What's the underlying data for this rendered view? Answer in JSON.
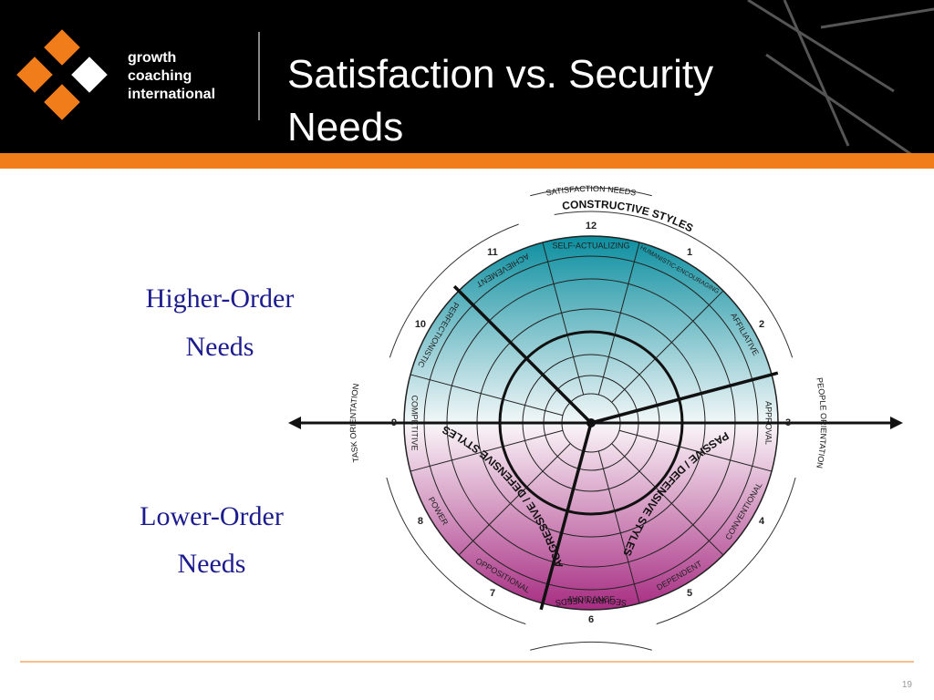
{
  "header": {
    "logo_lines": [
      "growth",
      "coaching",
      "international"
    ],
    "title_lines": [
      "Satisfaction vs. Security",
      "Needs"
    ]
  },
  "side_labels": {
    "higher": [
      "Higher-Order",
      "Needs"
    ],
    "lower": [
      "Lower-Order",
      "Needs"
    ]
  },
  "diagram": {
    "top": "SATISFACTION NEEDS",
    "bottom": "SECURITY NEEDS",
    "left": "TASK ORIENTATION",
    "right": "PEOPLE ORIENTATION",
    "styles": {
      "constructive": "CONSTRUCTIVE STYLES",
      "passive": "PASSIVE / DEFENSIVE STYLES",
      "aggressive": "AGGRESSIVE / DEFENSIVE STYLES"
    },
    "segments": [
      {
        "number": 12,
        "name": "SELF-ACTUALIZING"
      },
      {
        "number": 1,
        "name": "HUMANISTIC-ENCOURAGING"
      },
      {
        "number": 2,
        "name": "AFFILIATIVE"
      },
      {
        "number": 3,
        "name": "APPROVAL"
      },
      {
        "number": 4,
        "name": "CONVENTIONAL"
      },
      {
        "number": 5,
        "name": "DEPENDENT"
      },
      {
        "number": 6,
        "name": "AVOIDANCE"
      },
      {
        "number": 7,
        "name": "OPPOSITIONAL"
      },
      {
        "number": 8,
        "name": "POWER"
      },
      {
        "number": 9,
        "name": "COMPETITIVE"
      },
      {
        "number": 10,
        "name": "PERFECTIONISTIC"
      },
      {
        "number": 11,
        "name": "ACHIEVEMENT"
      }
    ]
  },
  "page_number": "19"
}
